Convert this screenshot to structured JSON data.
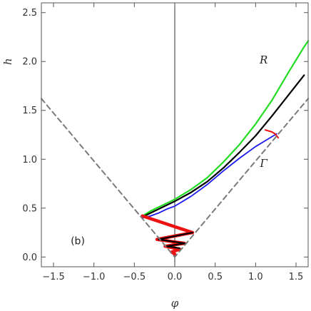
{
  "chart_data": {
    "type": "line",
    "panel_label": "(b)",
    "xlabel": "φ",
    "ylabel": "h",
    "xlim": [
      -1.65,
      1.65
    ],
    "ylim": [
      -0.1,
      2.6
    ],
    "x_ticks": [
      -1.5,
      -1.0,
      -0.5,
      0.0,
      0.5,
      1.0,
      1.5
    ],
    "x_tick_labels": [
      "−1.5",
      "−1.0",
      "−0.5",
      "0.0",
      "0.5",
      "1.0",
      "1.5"
    ],
    "y_ticks": [
      0.0,
      0.5,
      1.0,
      1.5,
      2.0,
      2.5
    ],
    "y_tick_labels": [
      "0.0",
      "0.5",
      "1.0",
      "1.5",
      "2.0",
      "2.5"
    ],
    "grid": false,
    "annotations": [
      {
        "text": "R",
        "x": 1.1,
        "y": 1.98
      },
      {
        "text": "Γ",
        "x": 1.1,
        "y": 0.92
      }
    ],
    "series": [
      {
        "color": "#22dd22",
        "style": "solid",
        "x": [
          -0.4,
          -0.3,
          -0.2,
          -0.1,
          0.0,
          0.2,
          0.4,
          0.6,
          0.8,
          1.0,
          1.2,
          1.4,
          1.6,
          1.65
        ],
        "y": [
          0.42,
          0.47,
          0.51,
          0.55,
          0.59,
          0.69,
          0.81,
          0.97,
          1.15,
          1.36,
          1.6,
          1.88,
          2.15,
          2.21
        ]
      },
      {
        "color": "#000000",
        "style": "solid",
        "x": [
          -0.4,
          -0.3,
          -0.2,
          -0.1,
          0.0,
          0.2,
          0.4,
          0.6,
          0.8,
          1.0,
          1.2,
          1.4,
          1.6
        ],
        "y": [
          0.41,
          0.45,
          0.49,
          0.53,
          0.57,
          0.66,
          0.77,
          0.91,
          1.07,
          1.24,
          1.44,
          1.65,
          1.86
        ]
      },
      {
        "color": "#1a1aee",
        "style": "solid",
        "x": [
          -0.4,
          -0.3,
          -0.2,
          -0.1,
          0.0,
          0.2,
          0.4,
          0.6,
          0.8,
          1.0,
          1.1,
          1.2,
          1.26
        ],
        "y": [
          0.4,
          0.42,
          0.45,
          0.49,
          0.52,
          0.62,
          0.74,
          0.88,
          1.01,
          1.13,
          1.18,
          1.23,
          1.26
        ]
      },
      {
        "color": "#ee1111",
        "style": "solid",
        "x": [
          -0.4,
          0.22,
          -0.22,
          0.12,
          -0.12,
          0.06,
          -0.04,
          0.0
        ],
        "y": [
          0.42,
          0.25,
          0.18,
          0.14,
          0.11,
          0.08,
          0.05,
          0.03
        ]
      },
      {
        "color": "#ee1111",
        "style": "solid",
        "x": [
          1.12,
          1.2,
          1.24,
          1.28
        ],
        "y": [
          1.3,
          1.28,
          1.26,
          1.22
        ]
      },
      {
        "color": "#000000",
        "style": "solid",
        "x": [
          -0.2,
          0.22,
          -0.2,
          0.12,
          -0.1,
          0.06
        ],
        "y": [
          0.18,
          0.25,
          0.18,
          0.14,
          0.11,
          0.09
        ]
      },
      {
        "color": "#7a7a7a",
        "style": "dashed",
        "x": [
          -1.65,
          0.0,
          1.65
        ],
        "y": [
          1.62,
          0.0,
          1.62
        ]
      }
    ]
  }
}
